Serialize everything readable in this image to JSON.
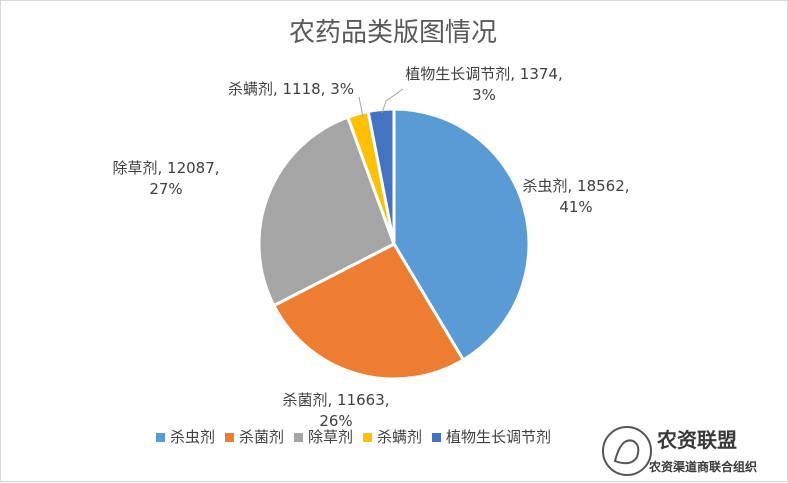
{
  "chart_data": {
    "type": "pie",
    "title": "农药品类版图情况",
    "categories": [
      "杀虫剂",
      "杀菌剂",
      "除草剂",
      "杀螨剂",
      "植物生长调节剂"
    ],
    "values": [
      18562,
      11663,
      12087,
      1118,
      1374
    ],
    "percent_labels": [
      "41%",
      "26%",
      "27%",
      "3%",
      "3%"
    ],
    "value_labels": [
      "18562",
      "11663",
      "12087",
      "1118",
      "1374"
    ],
    "colors": [
      "#5b9bd5",
      "#ed7d31",
      "#a5a5a5",
      "#ffc000",
      "#4472c4"
    ],
    "legend_position": "bottom"
  },
  "watermark": {
    "name": "农资联盟",
    "subtitle": "农资渠道商联合组织"
  }
}
